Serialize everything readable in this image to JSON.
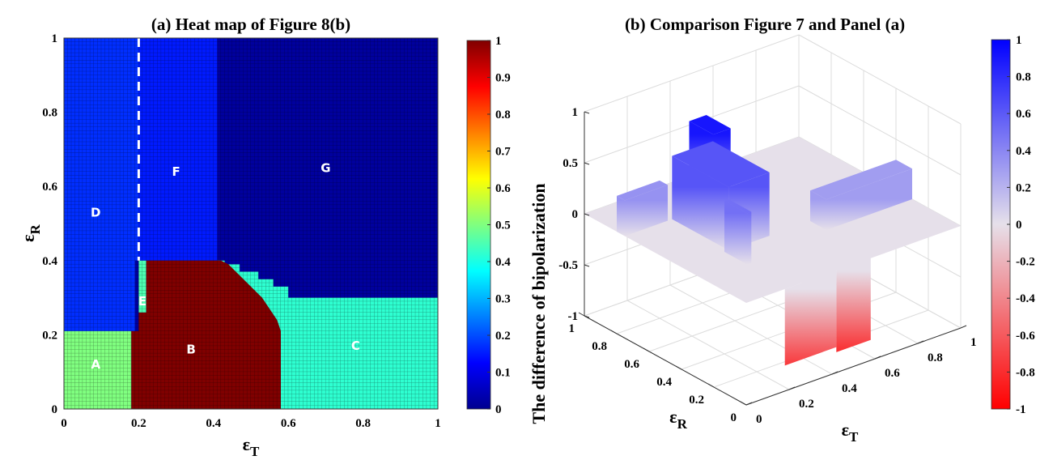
{
  "chart_data": [
    {
      "type": "heatmap",
      "title": "(a) Heat map of Figure 8(b)",
      "xlabel": "ε",
      "xlabel_sub": "T",
      "ylabel": "ε",
      "ylabel_sub": "R",
      "xlim": [
        0,
        1
      ],
      "ylim": [
        0,
        1
      ],
      "xticks": [
        "0",
        "0.2",
        "0.4",
        "0.6",
        "0.8",
        "1"
      ],
      "yticks": [
        "0",
        "0.2",
        "0.4",
        "0.6",
        "0.8",
        "1"
      ],
      "grid_cells": 100,
      "colormap": "jet",
      "colorbar_range": [
        0,
        1
      ],
      "colorbar_ticks": [
        "0",
        "0.1",
        "0.2",
        "0.3",
        "0.4",
        "0.5",
        "0.6",
        "0.7",
        "0.8",
        "0.9",
        "1"
      ],
      "dashed_line": {
        "x": 0.2,
        "y_from": 0.4,
        "y_to": 1
      },
      "regions": [
        {
          "label": "G",
          "value": 0.03,
          "label_at": [
            0.7,
            0.65
          ],
          "polygon": [
            [
              0,
              0
            ],
            [
              1,
              0
            ],
            [
              1,
              1
            ],
            [
              0,
              1
            ]
          ]
        },
        {
          "label": "D",
          "value": 0.17,
          "label_at": [
            0.085,
            0.53
          ],
          "polygon": [
            [
              0,
              0.21
            ],
            [
              0.19,
              0.21
            ],
            [
              0.19,
              0.4
            ],
            [
              0.41,
              0.4
            ],
            [
              0.41,
              1
            ],
            [
              0,
              1
            ]
          ]
        },
        {
          "label": "F",
          "value": 0.15,
          "label_at": [
            0.3,
            0.64
          ],
          "polygon": [
            [
              0.2,
              0.4
            ],
            [
              0.41,
              0.4
            ],
            [
              0.41,
              1
            ],
            [
              0.2,
              1
            ]
          ]
        },
        {
          "label": "C",
          "value": 0.42,
          "label_at": [
            0.78,
            0.17
          ],
          "polygon": [
            [
              0.58,
              0
            ],
            [
              1,
              0
            ],
            [
              1,
              0.3
            ],
            [
              0.6,
              0.3
            ],
            [
              0.6,
              0.33
            ],
            [
              0.56,
              0.33
            ],
            [
              0.56,
              0.35
            ],
            [
              0.52,
              0.35
            ],
            [
              0.52,
              0.37
            ],
            [
              0.47,
              0.37
            ],
            [
              0.47,
              0.39
            ],
            [
              0.43,
              0.39
            ],
            [
              0.43,
              0.4
            ],
            [
              0.41,
              0.4
            ],
            [
              0.41,
              0.3
            ],
            [
              0.58,
              0.2
            ]
          ]
        },
        {
          "label": "B",
          "value": 1.0,
          "label_at": [
            0.34,
            0.16
          ],
          "polygon": [
            [
              0.18,
              0
            ],
            [
              0.58,
              0
            ],
            [
              0.58,
              0.21
            ],
            [
              0.57,
              0.24
            ],
            [
              0.55,
              0.27
            ],
            [
              0.53,
              0.3
            ],
            [
              0.5,
              0.33
            ],
            [
              0.47,
              0.36
            ],
            [
              0.44,
              0.39
            ],
            [
              0.42,
              0.4
            ],
            [
              0.22,
              0.4
            ],
            [
              0.22,
              0.26
            ],
            [
              0.2,
              0.26
            ],
            [
              0.2,
              0.21
            ],
            [
              0.18,
              0.21
            ]
          ]
        },
        {
          "label": "E",
          "value": 0.45,
          "label_at": [
            0.21,
            0.29
          ],
          "polygon": [
            [
              0.2,
              0.26
            ],
            [
              0.22,
              0.26
            ],
            [
              0.22,
              0.4
            ],
            [
              0.2,
              0.4
            ]
          ]
        },
        {
          "label": "A",
          "value": 0.5,
          "label_at": [
            0.085,
            0.12
          ],
          "polygon": [
            [
              0,
              0
            ],
            [
              0.18,
              0
            ],
            [
              0.18,
              0.21
            ],
            [
              0,
              0.21
            ]
          ]
        }
      ]
    },
    {
      "type": "surface",
      "title": "(b) Comparison Figure 7 and Panel (a)",
      "xlabel": "ε",
      "xlabel_sub": "T",
      "ylabel": "ε",
      "ylabel_sub": "R",
      "zlabel": "The difference of bipolarization",
      "xlim": [
        0,
        1
      ],
      "ylim": [
        0,
        1
      ],
      "zlim": [
        -1,
        1
      ],
      "xticks": [
        "0",
        "0.2",
        "0.4",
        "0.6",
        "0.8",
        "1"
      ],
      "yticks": [
        "0",
        "0.2",
        "0.4",
        "0.6",
        "0.8",
        "1"
      ],
      "zticks": [
        "-1",
        "-0.5",
        "0",
        "0.5",
        "1"
      ],
      "colormap": "red-white-blue",
      "colorbar_range": [
        -1,
        1
      ],
      "colorbar_ticks": [
        "-1",
        "-0.8",
        "-0.6",
        "-0.4",
        "-0.2",
        "0",
        "0.2",
        "0.4",
        "0.6",
        "0.8",
        "1"
      ],
      "baseline_z": 0,
      "blocks": [
        {
          "T": [
            0.6,
            1.0
          ],
          "R": [
            0.3,
            0.4
          ],
          "z": 0.3
        },
        {
          "T": [
            0.0,
            0.2
          ],
          "R": [
            0.75,
            0.8
          ],
          "z": 0.35
        },
        {
          "T": [
            0.22,
            0.41
          ],
          "R": [
            0.4,
            0.75
          ],
          "z": 0.62
        },
        {
          "T": [
            0.3,
            0.38
          ],
          "R": [
            0.6,
            0.75
          ],
          "z": 0.9
        },
        {
          "T": [
            0.2,
            0.22
          ],
          "R": [
            0.26,
            0.4
          ],
          "z": 0.5
        },
        {
          "T": [
            0.42,
            0.58
          ],
          "R": [
            0.0,
            0.21
          ],
          "z": -0.8
        },
        {
          "T": [
            0.18,
            0.42
          ],
          "R": [
            0.0,
            0.21
          ],
          "z": -0.75
        }
      ]
    }
  ]
}
